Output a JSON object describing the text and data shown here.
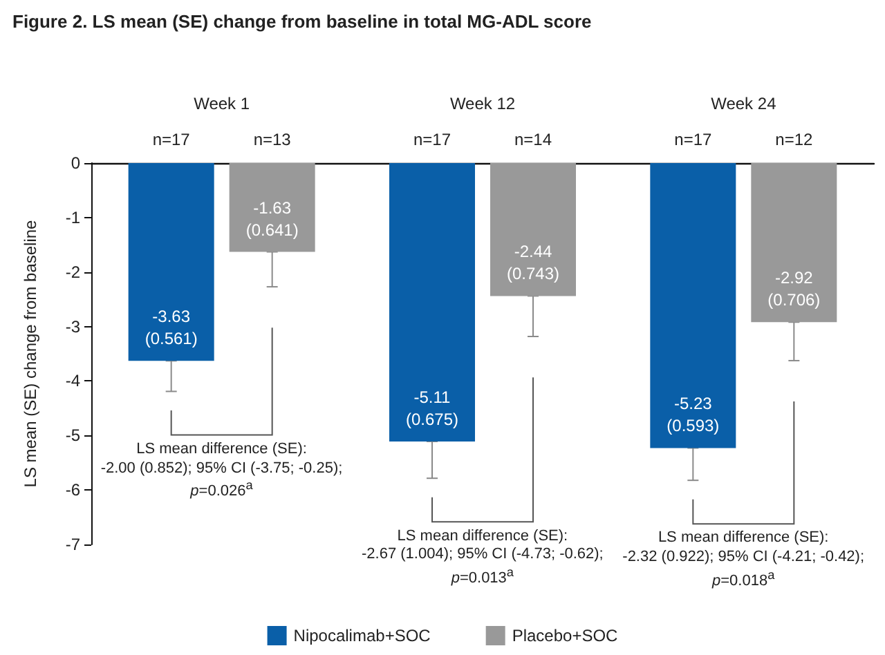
{
  "chart_data": {
    "type": "bar",
    "title": "Figure 2. LS mean (SE) change from baseline in total MG-ADL score",
    "ylabel": "LS mean (SE) change from baseline",
    "categories": [
      "Week 1",
      "Week 12",
      "Week 24"
    ],
    "series": [
      {
        "name": "Nipocalimab+SOC",
        "color": "#0a5fa8",
        "values": [
          -3.63,
          -5.11,
          -5.23
        ],
        "errors": [
          [
            -4.191,
            -3.63
          ],
          [
            -5.785,
            -5.11
          ],
          [
            -5.823,
            -5.23
          ]
        ],
        "value_labels": [
          "-3.63\n(0.561)",
          "-5.11\n(0.675)",
          "-5.23\n(0.593)"
        ]
      },
      {
        "name": "Placebo+SOC",
        "color": "#999999",
        "values": [
          -1.63,
          -2.44,
          -2.92
        ],
        "errors": [
          [
            -2.271,
            -1.63
          ],
          [
            -3.183,
            -2.44
          ],
          [
            -3.626,
            -2.92
          ]
        ],
        "value_labels": [
          "-1.63\n(0.641)",
          "-2.44\n(0.743)",
          "-2.92\n(0.706)"
        ]
      }
    ],
    "ylim": [
      -7,
      0
    ],
    "yticks": [
      -7,
      -6,
      -5,
      -4,
      -3,
      -2,
      -1,
      0
    ],
    "grid": false,
    "legend": "bottom",
    "annotations": [
      "n=17",
      "n=13",
      "n=17",
      "n=14",
      "n=17",
      "n=12",
      "LS mean difference (SE):\n-2.00 (0.852); 95% CI (-3.75; -0.25);\np=0.026$^{a}$",
      "LS mean difference (SE):\n-2.67 (1.004); 95% CI (-4.73; -0.62);\np=0.013$^{a}$",
      "LS mean difference (SE):\n-2.32 (0.922); 95% CI (-4.21; -0.42);\np=0.018$^{a}$"
    ]
  }
}
